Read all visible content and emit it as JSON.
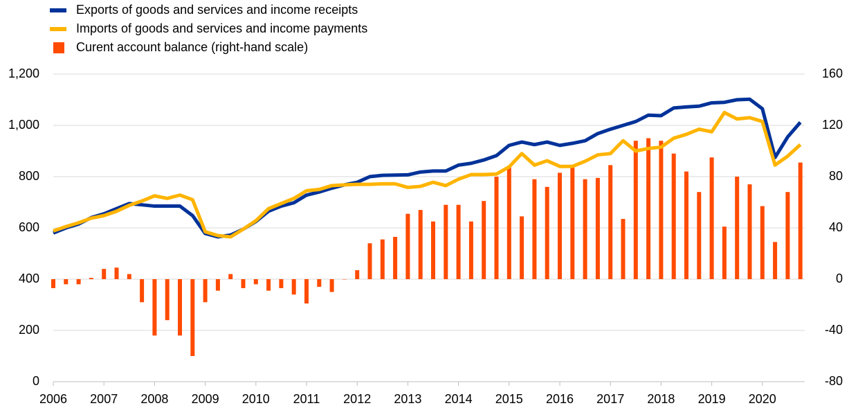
{
  "chart_data": {
    "type": "line-bar",
    "categories": [
      "2006",
      null,
      null,
      null,
      "2007",
      null,
      null,
      null,
      "2008",
      null,
      null,
      null,
      "2009",
      null,
      null,
      null,
      "2010",
      null,
      null,
      null,
      "2011",
      null,
      null,
      null,
      "2012",
      null,
      null,
      null,
      "2013",
      null,
      null,
      null,
      "2014",
      null,
      null,
      null,
      "2015",
      null,
      null,
      null,
      "2016",
      null,
      null,
      null,
      "2017",
      null,
      null,
      null,
      "2018",
      null,
      null,
      null,
      "2019",
      null,
      null,
      null,
      "2020",
      null,
      null,
      null
    ],
    "series": [
      {
        "name": "Exports of goods and services and income receipts",
        "color": "#003299",
        "kind": "line",
        "values": [
          580,
          600,
          615,
          640,
          655,
          675,
          695,
          690,
          685,
          685,
          685,
          648,
          578,
          565,
          572,
          595,
          625,
          665,
          685,
          698,
          728,
          740,
          755,
          768,
          778,
          800,
          805,
          806,
          807,
          818,
          822,
          822,
          845,
          852,
          865,
          882,
          922,
          935,
          925,
          935,
          922,
          930,
          940,
          968,
          985,
          1000,
          1015,
          1040,
          1038,
          1068,
          1072,
          1075,
          1088,
          1090,
          1100,
          1102,
          1065,
          875,
          955,
          1012
        ]
      },
      {
        "name": "Imports of goods and services and income payments",
        "color": "#ffb400",
        "kind": "line",
        "values": [
          588,
          605,
          620,
          638,
          648,
          665,
          688,
          705,
          725,
          715,
          728,
          710,
          585,
          570,
          565,
          595,
          628,
          675,
          695,
          715,
          745,
          750,
          765,
          768,
          770,
          770,
          772,
          772,
          758,
          762,
          778,
          765,
          790,
          808,
          808,
          810,
          838,
          890,
          845,
          862,
          840,
          840,
          860,
          885,
          890,
          940,
          900,
          910,
          915,
          950,
          965,
          985,
          975,
          1050,
          1025,
          1030,
          1015,
          845,
          880,
          925
        ]
      },
      {
        "name": "Curent account balance (right-hand scale)",
        "color": "#ff4b00",
        "kind": "bar",
        "axis": "y2",
        "values": [
          -7,
          -4,
          -4,
          1,
          8,
          9,
          4,
          -18,
          -44,
          -32,
          -44,
          -60,
          -18,
          -9,
          4,
          -7,
          -4,
          -9,
          -7,
          -12,
          -19,
          -6,
          -10,
          0,
          7,
          28,
          31,
          33,
          51,
          54,
          45,
          58,
          58,
          45,
          61,
          80,
          88,
          49,
          78,
          72,
          83,
          88,
          78,
          79,
          89,
          47,
          108,
          110,
          108,
          98,
          84,
          68,
          95,
          41,
          80,
          74,
          57,
          29,
          68,
          91
        ]
      }
    ],
    "ylim": [
      0,
      1200
    ],
    "yticks": [
      0,
      200,
      400,
      600,
      800,
      {
        "value": 1000,
        "label": "1,000"
      },
      {
        "value": 1200,
        "label": "1,200"
      }
    ],
    "y2lim": [
      -80,
      160
    ],
    "y2ticks": [
      -80,
      -40,
      0,
      40,
      80,
      120,
      160
    ],
    "grid": true
  }
}
